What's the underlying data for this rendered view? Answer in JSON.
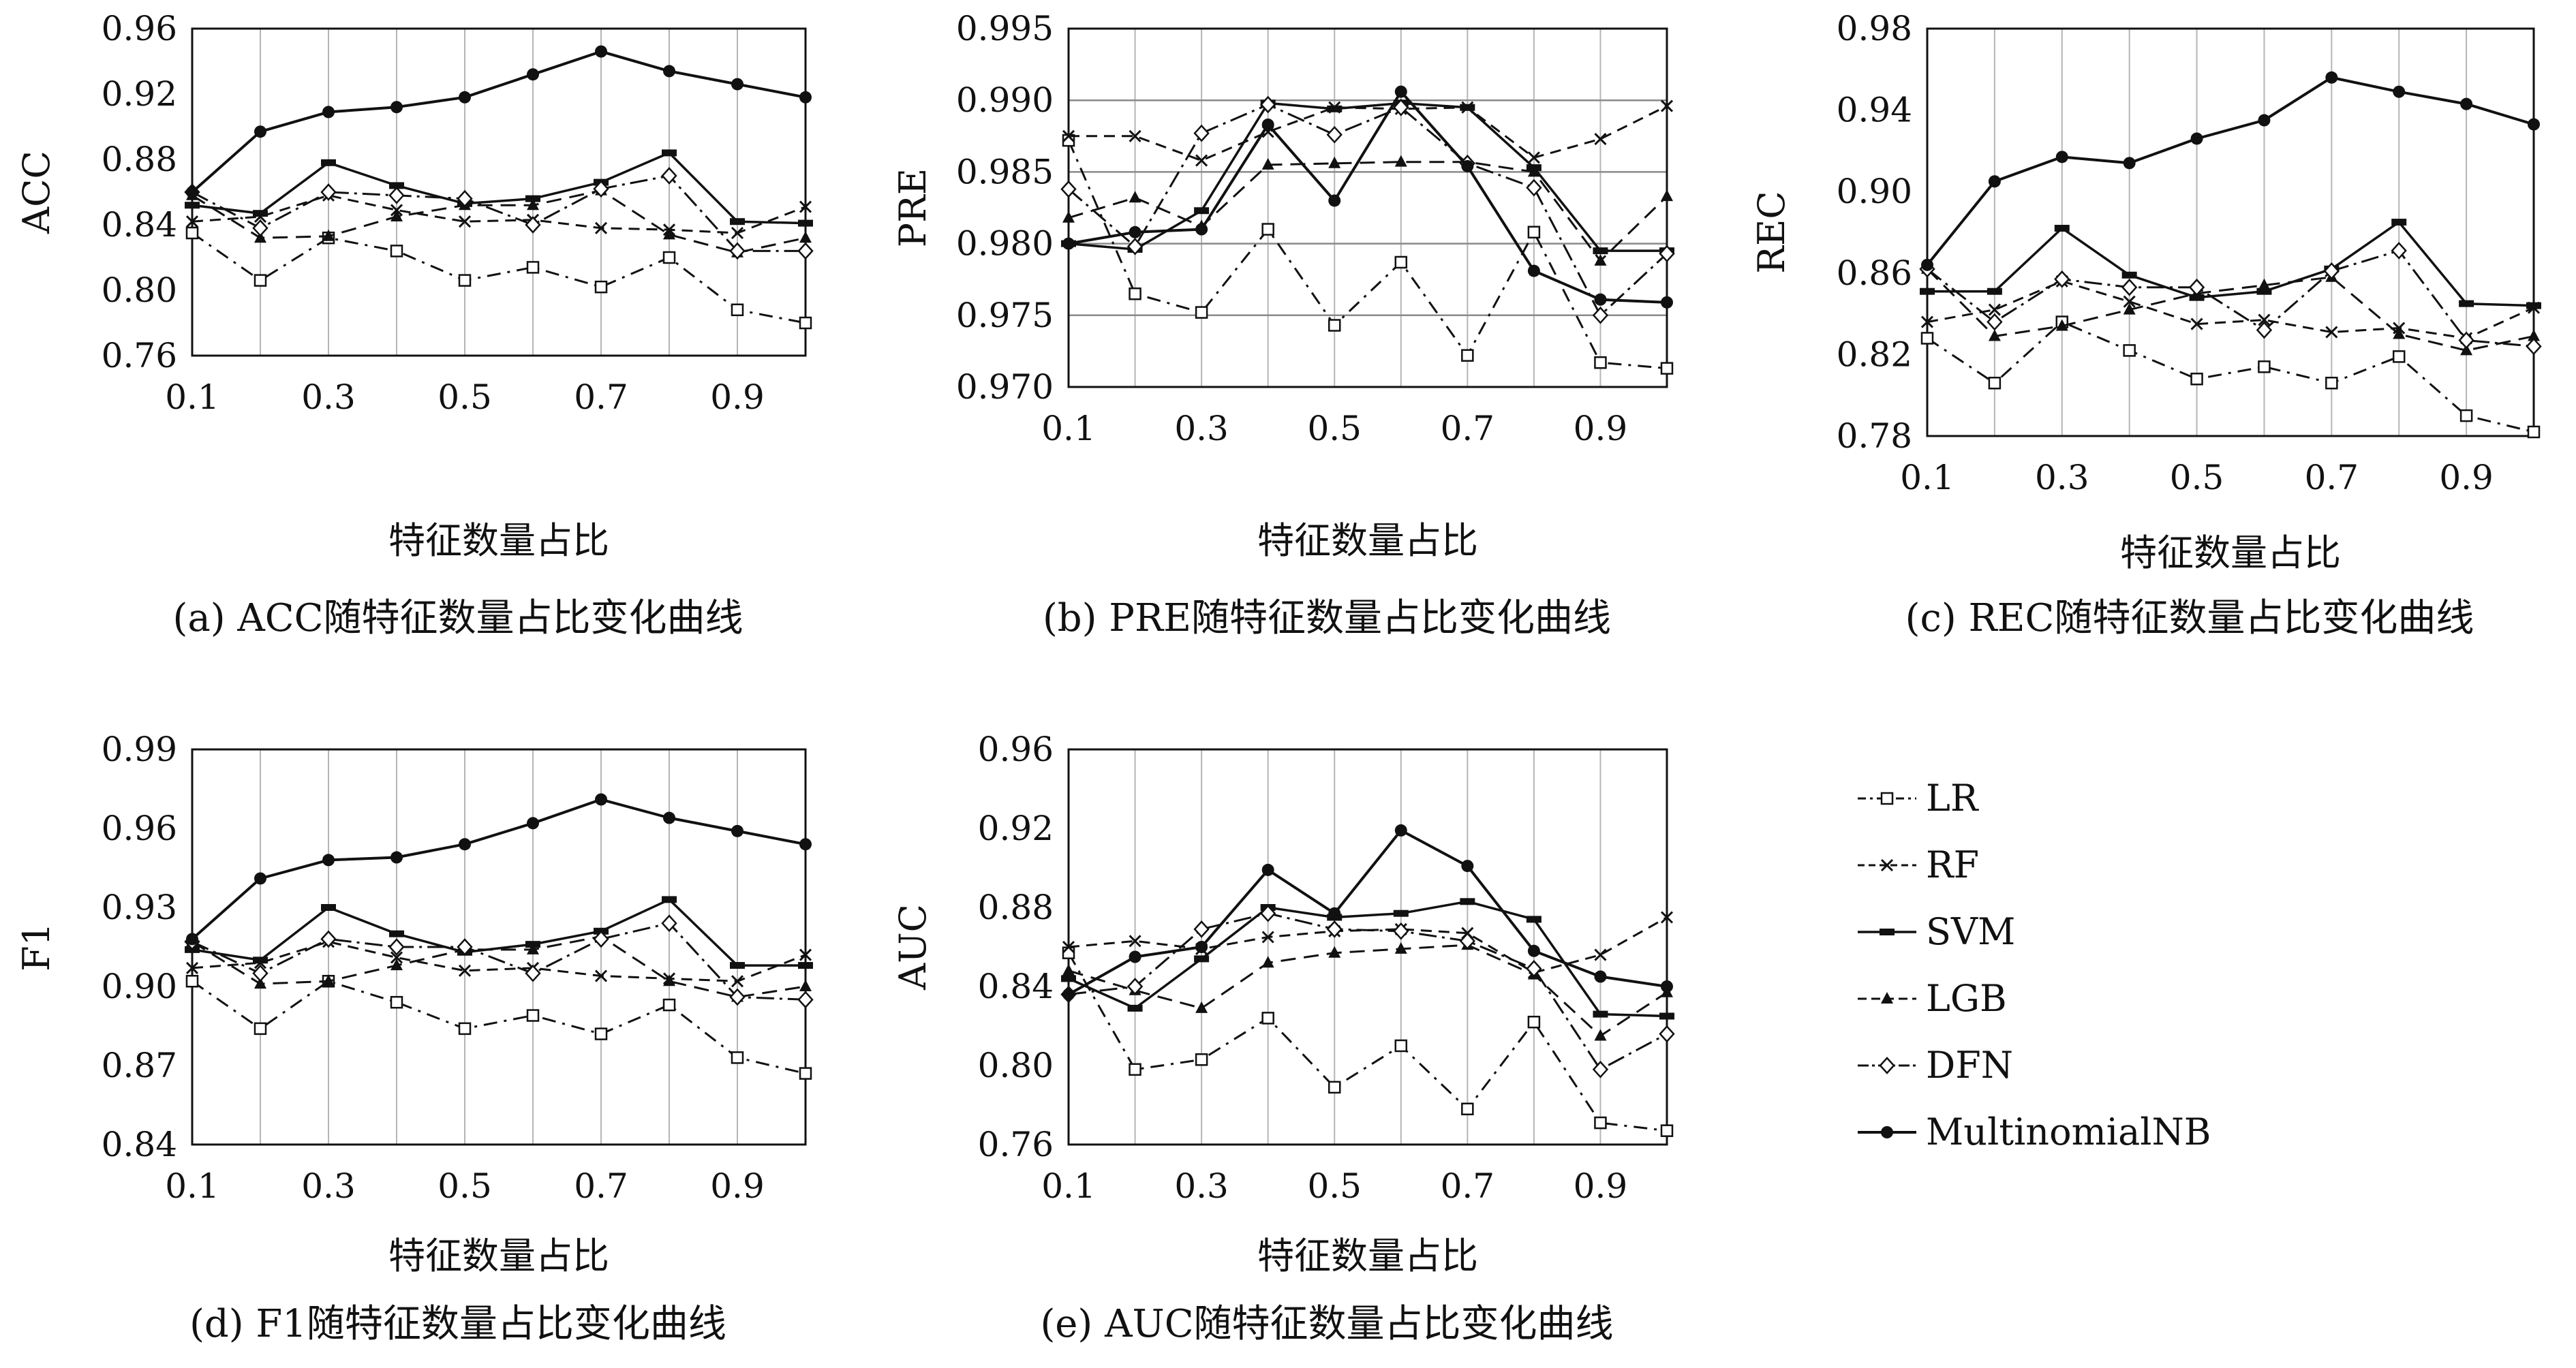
{
  "series_styles": [
    {
      "name": "LR",
      "dash": "20,10,4,10",
      "marker": "square",
      "width": 3
    },
    {
      "name": "RF",
      "dash": "16,10",
      "marker": "x",
      "width": 3
    },
    {
      "name": "SVM",
      "dash": "",
      "marker": "bar",
      "width": 3.5
    },
    {
      "name": "LGB",
      "dash": "22,12",
      "marker": "triangle",
      "width": 3
    },
    {
      "name": "DFN",
      "dash": "26,8,4,8",
      "marker": "diamond",
      "width": 3
    },
    {
      "name": "MultinomialNB",
      "dash": "",
      "marker": "circle",
      "width": 4
    }
  ],
  "chart_data": [
    {
      "id": "a",
      "type": "line",
      "caption": "(a) ACC随特征数量占比变化曲线",
      "xlabel": "特征数量占比",
      "ylabel": "ACC",
      "x": [
        0.1,
        0.2,
        0.3,
        0.4,
        0.5,
        0.6,
        0.7,
        0.8,
        0.9,
        1.0
      ],
      "xlim": [
        0.1,
        1.0
      ],
      "xticks": [
        "0.1",
        "0.3",
        "0.5",
        "0.7",
        "0.9"
      ],
      "ylim": [
        0.76,
        0.96
      ],
      "yticks": [
        "0.76",
        "0.80",
        "0.84",
        "0.88",
        "0.92",
        "0.96"
      ],
      "grid": "vertical",
      "series": [
        {
          "name": "LR",
          "values": [
            0.835,
            0.806,
            0.832,
            0.824,
            0.806,
            0.814,
            0.802,
            0.82,
            0.788,
            0.78
          ]
        },
        {
          "name": "RF",
          "values": [
            0.842,
            0.845,
            0.858,
            0.849,
            0.842,
            0.843,
            0.838,
            0.837,
            0.835,
            0.851
          ]
        },
        {
          "name": "SVM",
          "values": [
            0.852,
            0.847,
            0.878,
            0.864,
            0.853,
            0.856,
            0.866,
            0.884,
            0.842,
            0.841
          ]
        },
        {
          "name": "LGB",
          "values": [
            0.858,
            0.832,
            0.833,
            0.845,
            0.852,
            0.852,
            0.861,
            0.834,
            0.823,
            0.832
          ]
        },
        {
          "name": "DFN",
          "values": [
            0.86,
            0.838,
            0.86,
            0.858,
            0.856,
            0.84,
            0.862,
            0.87,
            0.824,
            0.824
          ]
        },
        {
          "name": "MultinomialNB",
          "values": [
            0.86,
            0.897,
            0.909,
            0.912,
            0.918,
            0.932,
            0.946,
            0.934,
            0.926,
            0.918
          ]
        }
      ]
    },
    {
      "id": "b",
      "type": "line",
      "caption": "(b) PRE随特征数量占比变化曲线",
      "xlabel": "特征数量占比",
      "ylabel": "PRE",
      "x": [
        0.1,
        0.2,
        0.3,
        0.4,
        0.5,
        0.6,
        0.7,
        0.8,
        0.9,
        1.0
      ],
      "xlim": [
        0.1,
        1.0
      ],
      "xticks": [
        "0.1",
        "0.3",
        "0.5",
        "0.7",
        "0.9"
      ],
      "ylim": [
        0.97,
        0.995
      ],
      "yticks": [
        "0.970",
        "0.975",
        "0.980",
        "0.985",
        "0.990",
        "0.995"
      ],
      "grid": "both",
      "series": [
        {
          "name": "LR",
          "values": [
            0.9872,
            0.9765,
            0.9752,
            0.981,
            0.9743,
            0.9787,
            0.9722,
            0.9808,
            0.9717,
            0.9713
          ]
        },
        {
          "name": "RF",
          "values": [
            0.9875,
            0.9875,
            0.9858,
            0.9878,
            0.9895,
            0.9894,
            0.9895,
            0.986,
            0.9873,
            0.9896
          ]
        },
        {
          "name": "SVM",
          "values": [
            0.98,
            0.9796,
            0.9823,
            0.9898,
            0.9894,
            0.9898,
            0.9895,
            0.9853,
            0.9795,
            0.9795
          ]
        },
        {
          "name": "LGB",
          "values": [
            0.9818,
            0.9832,
            0.9812,
            0.9855,
            0.9856,
            0.9857,
            0.9857,
            0.985,
            0.9788,
            0.9833
          ]
        },
        {
          "name": "DFN",
          "values": [
            0.9838,
            0.9798,
            0.9877,
            0.9897,
            0.9876,
            0.9895,
            0.9856,
            0.9839,
            0.975,
            0.9793
          ]
        },
        {
          "name": "MultinomialNB",
          "values": [
            0.98,
            0.9808,
            0.981,
            0.9883,
            0.983,
            0.9906,
            0.9854,
            0.9781,
            0.9761,
            0.9759
          ]
        }
      ]
    },
    {
      "id": "c",
      "type": "line",
      "caption": "(c) REC随特征数量占比变化曲线",
      "xlabel": "特征数量占比",
      "ylabel": "REC",
      "x": [
        0.1,
        0.2,
        0.3,
        0.4,
        0.5,
        0.6,
        0.7,
        0.8,
        0.9,
        1.0
      ],
      "xlim": [
        0.1,
        1.0
      ],
      "xticks": [
        "0.1",
        "0.3",
        "0.5",
        "0.7",
        "0.9"
      ],
      "ylim": [
        0.78,
        0.98
      ],
      "yticks": [
        "0.78",
        "0.82",
        "0.86",
        "0.90",
        "0.94",
        "0.98"
      ],
      "grid": "vertical",
      "series": [
        {
          "name": "LR",
          "values": [
            0.828,
            0.806,
            0.836,
            0.822,
            0.808,
            0.814,
            0.806,
            0.819,
            0.79,
            0.782
          ]
        },
        {
          "name": "RF",
          "values": [
            0.836,
            0.842,
            0.856,
            0.846,
            0.835,
            0.837,
            0.831,
            0.833,
            0.828,
            0.843
          ]
        },
        {
          "name": "SVM",
          "values": [
            0.851,
            0.851,
            0.882,
            0.859,
            0.848,
            0.851,
            0.862,
            0.885,
            0.845,
            0.844
          ]
        },
        {
          "name": "LGB",
          "values": [
            0.862,
            0.829,
            0.834,
            0.842,
            0.85,
            0.854,
            0.858,
            0.83,
            0.822,
            0.829
          ]
        },
        {
          "name": "DFN",
          "values": [
            0.862,
            0.836,
            0.857,
            0.853,
            0.853,
            0.832,
            0.861,
            0.871,
            0.827,
            0.824
          ]
        },
        {
          "name": "MultinomialNB",
          "values": [
            0.864,
            0.905,
            0.917,
            0.914,
            0.926,
            0.935,
            0.956,
            0.949,
            0.943,
            0.933
          ]
        }
      ]
    },
    {
      "id": "d",
      "type": "line",
      "caption": "(d)  F1随特征数量占比变化曲线",
      "xlabel": "特征数量占比",
      "ylabel": "F1",
      "x": [
        0.1,
        0.2,
        0.3,
        0.4,
        0.5,
        0.6,
        0.7,
        0.8,
        0.9,
        1.0
      ],
      "xlim": [
        0.1,
        1.0
      ],
      "xticks": [
        "0.1",
        "0.3",
        "0.5",
        "0.7",
        "0.9"
      ],
      "ylim": [
        0.84,
        0.99
      ],
      "yticks": [
        "0.84",
        "0.87",
        "0.90",
        "0.93",
        "0.96",
        "0.99"
      ],
      "grid": "vertical",
      "series": [
        {
          "name": "LR",
          "values": [
            0.902,
            0.884,
            0.902,
            0.894,
            0.884,
            0.889,
            0.882,
            0.893,
            0.873,
            0.867
          ]
        },
        {
          "name": "RF",
          "values": [
            0.907,
            0.909,
            0.917,
            0.911,
            0.906,
            0.907,
            0.904,
            0.903,
            0.902,
            0.912
          ]
        },
        {
          "name": "SVM",
          "values": [
            0.914,
            0.91,
            0.93,
            0.92,
            0.913,
            0.916,
            0.921,
            0.933,
            0.908,
            0.908
          ]
        },
        {
          "name": "LGB",
          "values": [
            0.917,
            0.901,
            0.902,
            0.908,
            0.914,
            0.914,
            0.919,
            0.902,
            0.896,
            0.9
          ]
        },
        {
          "name": "DFN",
          "values": [
            0.917,
            0.905,
            0.918,
            0.915,
            0.915,
            0.905,
            0.918,
            0.924,
            0.896,
            0.895
          ]
        },
        {
          "name": "MultinomialNB",
          "values": [
            0.918,
            0.941,
            0.948,
            0.949,
            0.954,
            0.962,
            0.971,
            0.964,
            0.959,
            0.954
          ]
        }
      ]
    },
    {
      "id": "e",
      "type": "line",
      "caption": "(e) AUC随特征数量占比变化曲线",
      "xlabel": "特征数量占比",
      "ylabel": "AUC",
      "x": [
        0.1,
        0.2,
        0.3,
        0.4,
        0.5,
        0.6,
        0.7,
        0.8,
        0.9,
        1.0
      ],
      "xlim": [
        0.1,
        1.0
      ],
      "xticks": [
        "0.1",
        "0.3",
        "0.5",
        "0.7",
        "0.9"
      ],
      "ylim": [
        0.76,
        0.96
      ],
      "yticks": [
        "0.76",
        "0.80",
        "0.84",
        "0.88",
        "0.92",
        "0.96"
      ],
      "grid": "vertical",
      "series": [
        {
          "name": "LR",
          "values": [
            0.857,
            0.798,
            0.803,
            0.824,
            0.789,
            0.81,
            0.778,
            0.822,
            0.771,
            0.767
          ]
        },
        {
          "name": "RF",
          "values": [
            0.86,
            0.863,
            0.859,
            0.865,
            0.868,
            0.869,
            0.867,
            0.847,
            0.856,
            0.875
          ]
        },
        {
          "name": "SVM",
          "values": [
            0.844,
            0.829,
            0.854,
            0.88,
            0.875,
            0.877,
            0.883,
            0.874,
            0.826,
            0.825
          ]
        },
        {
          "name": "LGB",
          "values": [
            0.848,
            0.838,
            0.829,
            0.852,
            0.857,
            0.859,
            0.861,
            0.846,
            0.815,
            0.837
          ]
        },
        {
          "name": "DFN",
          "values": [
            0.836,
            0.84,
            0.869,
            0.877,
            0.869,
            0.868,
            0.863,
            0.849,
            0.798,
            0.816
          ]
        },
        {
          "name": "MultinomialNB",
          "values": [
            0.836,
            0.855,
            0.86,
            0.899,
            0.877,
            0.919,
            0.901,
            0.858,
            0.845,
            0.84
          ]
        }
      ]
    }
  ]
}
